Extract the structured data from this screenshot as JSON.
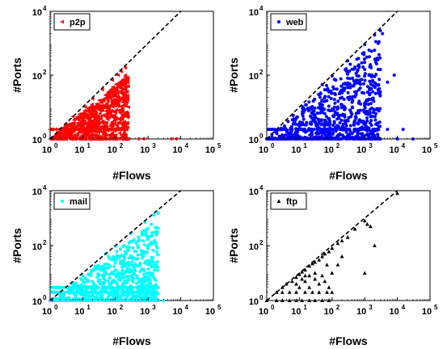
{
  "chart_data": [
    {
      "type": "scatter",
      "xlabel": "",
      "ylabel": "#Ports",
      "xscale": "log",
      "yscale": "log",
      "xlim": [
        1,
        100000
      ],
      "ylim": [
        1,
        10000
      ],
      "x_ticks": [
        {
          "base": "10",
          "exp": "0"
        },
        {
          "base": "10",
          "exp": "1"
        },
        {
          "base": "10",
          "exp": "2"
        },
        {
          "base": "10",
          "exp": "3"
        },
        {
          "base": "10",
          "exp": "4"
        },
        {
          "base": "10",
          "exp": "5"
        }
      ],
      "y_ticks": [
        {
          "base": "10",
          "exp": "0"
        },
        {
          "base": "10",
          "exp": "2"
        },
        {
          "base": "10",
          "exp": "4"
        }
      ],
      "legend": {
        "label": "p2p",
        "position": "top-left"
      },
      "color": "#ff0000",
      "marker": "triangle-left",
      "reference_line": {
        "style": "dashed",
        "color": "#000000",
        "points": [
          [
            1,
            1
          ],
          [
            10000,
            10000
          ]
        ]
      },
      "max_ports_fraction": 0.85,
      "floor_rows": [
        1,
        2
      ],
      "series": [
        {
          "name": "p2p",
          "points": [
            [
              1,
              1
            ],
            [
              2,
              1
            ],
            [
              3,
              1
            ],
            [
              5,
              1
            ],
            [
              8,
              1
            ],
            [
              15,
              1
            ],
            [
              30,
              1
            ],
            [
              60,
              1
            ],
            [
              100,
              1
            ],
            [
              150,
              1
            ],
            [
              200,
              1
            ],
            [
              500,
              1
            ],
            [
              700,
              1
            ],
            [
              5000,
              1
            ],
            [
              7000,
              1
            ],
            [
              3,
              3
            ],
            [
              5,
              5
            ],
            [
              8,
              6
            ],
            [
              12,
              10
            ],
            [
              20,
              18
            ],
            [
              40,
              35
            ],
            [
              80,
              70
            ],
            [
              120,
              100
            ],
            [
              150,
              130
            ],
            [
              200,
              170
            ],
            [
              200,
              100
            ],
            [
              180,
              60
            ],
            [
              200,
              30
            ],
            [
              250,
              10
            ],
            [
              160,
              5
            ],
            [
              130,
              20
            ],
            [
              100,
              40
            ],
            [
              80,
              15
            ],
            [
              60,
              25
            ],
            [
              40,
              8
            ],
            [
              30,
              12
            ],
            [
              20,
              6
            ],
            [
              15,
              4
            ],
            [
              10,
              3
            ],
            [
              220,
              2
            ]
          ]
        }
      ]
    },
    {
      "type": "scatter",
      "xlabel": "",
      "ylabel": "#Ports",
      "xscale": "log",
      "yscale": "log",
      "xlim": [
        1,
        100000
      ],
      "ylim": [
        1,
        10000
      ],
      "x_ticks": [
        {
          "base": "10",
          "exp": "0"
        },
        {
          "base": "10",
          "exp": "1"
        },
        {
          "base": "10",
          "exp": "2"
        },
        {
          "base": "10",
          "exp": "3"
        },
        {
          "base": "10",
          "exp": "4"
        },
        {
          "base": "10",
          "exp": "5"
        }
      ],
      "y_ticks": [
        {
          "base": "10",
          "exp": "0"
        },
        {
          "base": "10",
          "exp": "2"
        },
        {
          "base": "10",
          "exp": "4"
        }
      ],
      "legend": {
        "label": "web",
        "position": "top-left"
      },
      "color": "#0000ff",
      "marker": "circle",
      "reference_line": {
        "style": "dashed",
        "color": "#000000",
        "points": [
          [
            1,
            1
          ],
          [
            10000,
            10000
          ]
        ]
      },
      "max_ports_fraction": 0.92,
      "floor_rows": [
        1,
        2
      ],
      "series": [
        {
          "name": "web",
          "points": [
            [
              1,
              1
            ],
            [
              5,
              1
            ],
            [
              20,
              1
            ],
            [
              100,
              1
            ],
            [
              500,
              1
            ],
            [
              1000,
              1
            ],
            [
              3000,
              1
            ],
            [
              10000,
              1
            ],
            [
              30000,
              1
            ],
            [
              10,
              2
            ],
            [
              100,
              2
            ],
            [
              1000,
              2
            ],
            [
              5000,
              2
            ],
            [
              15000,
              2
            ],
            [
              50,
              50
            ],
            [
              100,
              95
            ],
            [
              300,
              280
            ],
            [
              1000,
              900
            ],
            [
              2000,
              1800
            ],
            [
              3000,
              2500
            ],
            [
              3500,
              2000
            ],
            [
              2000,
              600
            ],
            [
              1500,
              200
            ],
            [
              3000,
              150
            ],
            [
              8000,
              100
            ],
            [
              5000,
              60
            ],
            [
              1000,
              150
            ],
            [
              700,
              60
            ],
            [
              500,
              30
            ],
            [
              300,
              80
            ],
            [
              200,
              20
            ],
            [
              150,
              10
            ],
            [
              80,
              30
            ],
            [
              60,
              15
            ],
            [
              3000,
              30
            ]
          ]
        }
      ]
    },
    {
      "type": "scatter",
      "xlabel": "#Flows",
      "ylabel": "#Ports",
      "xscale": "log",
      "yscale": "log",
      "xlim": [
        1,
        100000
      ],
      "ylim": [
        1,
        10000
      ],
      "x_ticks": [
        {
          "base": "10",
          "exp": "0"
        },
        {
          "base": "10",
          "exp": "1"
        },
        {
          "base": "10",
          "exp": "2"
        },
        {
          "base": "10",
          "exp": "3"
        },
        {
          "base": "10",
          "exp": "4"
        },
        {
          "base": "10",
          "exp": "5"
        }
      ],
      "y_ticks": [
        {
          "base": "10",
          "exp": "0"
        },
        {
          "base": "10",
          "exp": "2"
        },
        {
          "base": "10",
          "exp": "4"
        }
      ],
      "legend": {
        "label": "mail",
        "position": "top-left"
      },
      "color": "#00ffff",
      "marker": "circle",
      "reference_line": {
        "style": "dashed",
        "color": "#000000",
        "points": [
          [
            1,
            1
          ],
          [
            10000,
            10000
          ]
        ]
      },
      "max_ports_fraction": 0.9,
      "floor_rows": [
        1,
        2,
        3
      ],
      "series": [
        {
          "name": "mail",
          "points": [
            [
              1,
              1
            ],
            [
              5,
              1
            ],
            [
              20,
              1
            ],
            [
              100,
              1
            ],
            [
              500,
              1
            ],
            [
              1000,
              1
            ],
            [
              2000,
              1
            ],
            [
              3000,
              1
            ],
            [
              10,
              2
            ],
            [
              100,
              2
            ],
            [
              1000,
              2
            ],
            [
              2000,
              3
            ],
            [
              50,
              50
            ],
            [
              100,
              95
            ],
            [
              300,
              280
            ],
            [
              800,
              700
            ],
            [
              1500,
              1300
            ],
            [
              2000,
              1500
            ],
            [
              1500,
              300
            ],
            [
              1000,
              100
            ],
            [
              700,
              40
            ],
            [
              500,
              200
            ],
            [
              300,
              20
            ],
            [
              200,
              60
            ],
            [
              150,
              10
            ],
            [
              80,
              30
            ],
            [
              60,
              15
            ],
            [
              30,
              5
            ]
          ]
        }
      ]
    },
    {
      "type": "scatter",
      "xlabel": "#Flows",
      "ylabel": "#Ports",
      "xscale": "log",
      "yscale": "log",
      "xlim": [
        1,
        100000
      ],
      "ylim": [
        1,
        10000
      ],
      "x_ticks": [
        {
          "base": "10",
          "exp": "0"
        },
        {
          "base": "10",
          "exp": "1"
        },
        {
          "base": "10",
          "exp": "2"
        },
        {
          "base": "10",
          "exp": "3"
        },
        {
          "base": "10",
          "exp": "4"
        },
        {
          "base": "10",
          "exp": "5"
        }
      ],
      "y_ticks": [
        {
          "base": "10",
          "exp": "0"
        },
        {
          "base": "10",
          "exp": "2"
        },
        {
          "base": "10",
          "exp": "4"
        }
      ],
      "legend": {
        "label": "ftp",
        "position": "top-left"
      },
      "color": "#000000",
      "marker": "triangle-up",
      "reference_line": {
        "style": "dashed",
        "color": "#000000",
        "points": [
          [
            1,
            1
          ],
          [
            10000,
            10000
          ]
        ]
      },
      "max_ports_fraction": 0.9,
      "floor_rows": [
        1,
        2
      ],
      "series": [
        {
          "name": "ftp",
          "points": [
            [
              1,
              1
            ],
            [
              2,
              1
            ],
            [
              3,
              1
            ],
            [
              5,
              1
            ],
            [
              8,
              1
            ],
            [
              12,
              1
            ],
            [
              20,
              1
            ],
            [
              30,
              1
            ],
            [
              50,
              1
            ],
            [
              80,
              1
            ],
            [
              2,
              2
            ],
            [
              3,
              2
            ],
            [
              5,
              2
            ],
            [
              8,
              2
            ],
            [
              15,
              2
            ],
            [
              25,
              2
            ],
            [
              40,
              2
            ],
            [
              70,
              2
            ],
            [
              100,
              2
            ],
            [
              3,
              3
            ],
            [
              4,
              4
            ],
            [
              6,
              5
            ],
            [
              8,
              7
            ],
            [
              10,
              9
            ],
            [
              12,
              11
            ],
            [
              15,
              13
            ],
            [
              20,
              18
            ],
            [
              25,
              22
            ],
            [
              30,
              25
            ],
            [
              40,
              30
            ],
            [
              50,
              40
            ],
            [
              60,
              50
            ],
            [
              80,
              60
            ],
            [
              100,
              80
            ],
            [
              150,
              120
            ],
            [
              200,
              150
            ],
            [
              300,
              200
            ],
            [
              500,
              400
            ],
            [
              1000,
              800
            ],
            [
              1200,
              600
            ],
            [
              1500,
              500
            ],
            [
              10000,
              8000
            ],
            [
              1000,
              10
            ],
            [
              2000,
              100
            ],
            [
              80,
              3
            ],
            [
              60,
              5
            ],
            [
              40,
              4
            ],
            [
              20,
              3
            ],
            [
              30,
              6
            ],
            [
              15,
              5
            ],
            [
              10,
              3
            ],
            [
              50,
              8
            ],
            [
              100,
              10
            ],
            [
              150,
              20
            ],
            [
              200,
              40
            ],
            [
              70,
              20
            ],
            [
              30,
              10
            ],
            [
              20,
              8
            ],
            [
              12,
              6
            ],
            [
              8,
              4
            ],
            [
              15,
              8
            ]
          ]
        }
      ]
    }
  ]
}
